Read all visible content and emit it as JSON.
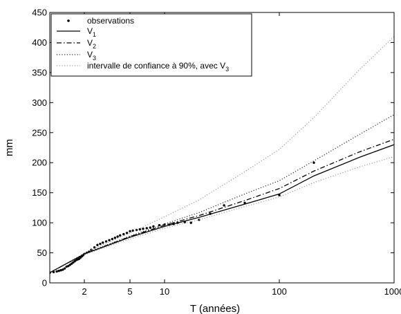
{
  "chart_data": {
    "type": "line",
    "xlabel": "T (années)",
    "ylabel": "mm",
    "xscale": "log",
    "xlim": [
      1,
      1000
    ],
    "ylim": [
      0,
      450
    ],
    "x_ticks": [
      2,
      5,
      10,
      100,
      1000
    ],
    "x_tick_labels": [
      "2",
      "5",
      "10",
      "100",
      "1000"
    ],
    "y_ticks": [
      0,
      50,
      100,
      150,
      200,
      250,
      300,
      350,
      400,
      450
    ],
    "y_tick_labels": [
      "0",
      "50",
      "100",
      "150",
      "200",
      "250",
      "300",
      "350",
      "400",
      "450"
    ],
    "grid": false,
    "legend_position": "top-left",
    "legend": [
      {
        "label": "observations",
        "sub": ""
      },
      {
        "label": "V",
        "sub": "1"
      },
      {
        "label": "V",
        "sub": "2"
      },
      {
        "label": "V",
        "sub": "3"
      },
      {
        "label": "intervalle de confiance à 90%, avec V",
        "sub": "3"
      }
    ],
    "series": [
      {
        "id": "observations",
        "style": "points",
        "x": [
          1.0,
          1.08,
          1.15,
          1.2,
          1.25,
          1.3,
          1.35,
          1.4,
          1.45,
          1.5,
          1.55,
          1.6,
          1.65,
          1.7,
          1.75,
          1.8,
          1.85,
          1.9,
          1.95,
          2.0,
          2.1,
          2.2,
          2.3,
          2.45,
          2.6,
          2.75,
          2.9,
          3.1,
          3.3,
          3.5,
          3.7,
          3.9,
          4.1,
          4.4,
          4.7,
          5.0,
          5.3,
          5.7,
          6.1,
          6.5,
          7.0,
          7.5,
          8.0,
          9.0,
          10.0,
          11.0,
          12.0,
          13.0,
          15.0,
          17.0,
          20.0,
          25.0,
          33.0,
          50.0,
          100.0,
          200.0
        ],
        "y": [
          17,
          18,
          19,
          20,
          21,
          22,
          24,
          27,
          28,
          30,
          32,
          34,
          36,
          38,
          39,
          40,
          42,
          44,
          46,
          48,
          50,
          52,
          55,
          59,
          63,
          65,
          67,
          69,
          71,
          73,
          75,
          77,
          79,
          81,
          83,
          86,
          87,
          88,
          89,
          90,
          91,
          92,
          94,
          96,
          97,
          97,
          98,
          100,
          101,
          100,
          105,
          115,
          129,
          133,
          146,
          200
        ]
      },
      {
        "id": "V1",
        "style": "solid",
        "x": [
          1.0,
          2,
          5,
          10,
          20,
          50,
          100,
          200,
          500,
          1000
        ],
        "y": [
          17,
          48,
          76,
          94,
          109,
          131,
          148,
          178,
          209,
          230
        ]
      },
      {
        "id": "V2",
        "style": "dashdot",
        "x": [
          1.0,
          2,
          5,
          10,
          20,
          50,
          100,
          200,
          500,
          1000
        ],
        "y": [
          17,
          48,
          77,
          96,
          112,
          137,
          157,
          186,
          218,
          239
        ]
      },
      {
        "id": "V3",
        "style": "dotted",
        "x": [
          1.0,
          2,
          5,
          10,
          20,
          50,
          100,
          200,
          500,
          1000
        ],
        "y": [
          17,
          49,
          78,
          98,
          117,
          148,
          170,
          203,
          247,
          280
        ]
      },
      {
        "id": "CI_upper",
        "style": "dotted-light",
        "x": [
          2,
          5,
          10,
          20,
          50,
          100,
          200,
          500,
          1000
        ],
        "y": [
          50,
          83,
          110,
          138,
          185,
          222,
          275,
          355,
          410
        ]
      },
      {
        "id": "CI_lower",
        "style": "dotted-light",
        "x": [
          2,
          5,
          10,
          20,
          50,
          100,
          200,
          500,
          1000
        ],
        "y": [
          47,
          73,
          91,
          105,
          127,
          143,
          167,
          193,
          210
        ]
      }
    ]
  }
}
